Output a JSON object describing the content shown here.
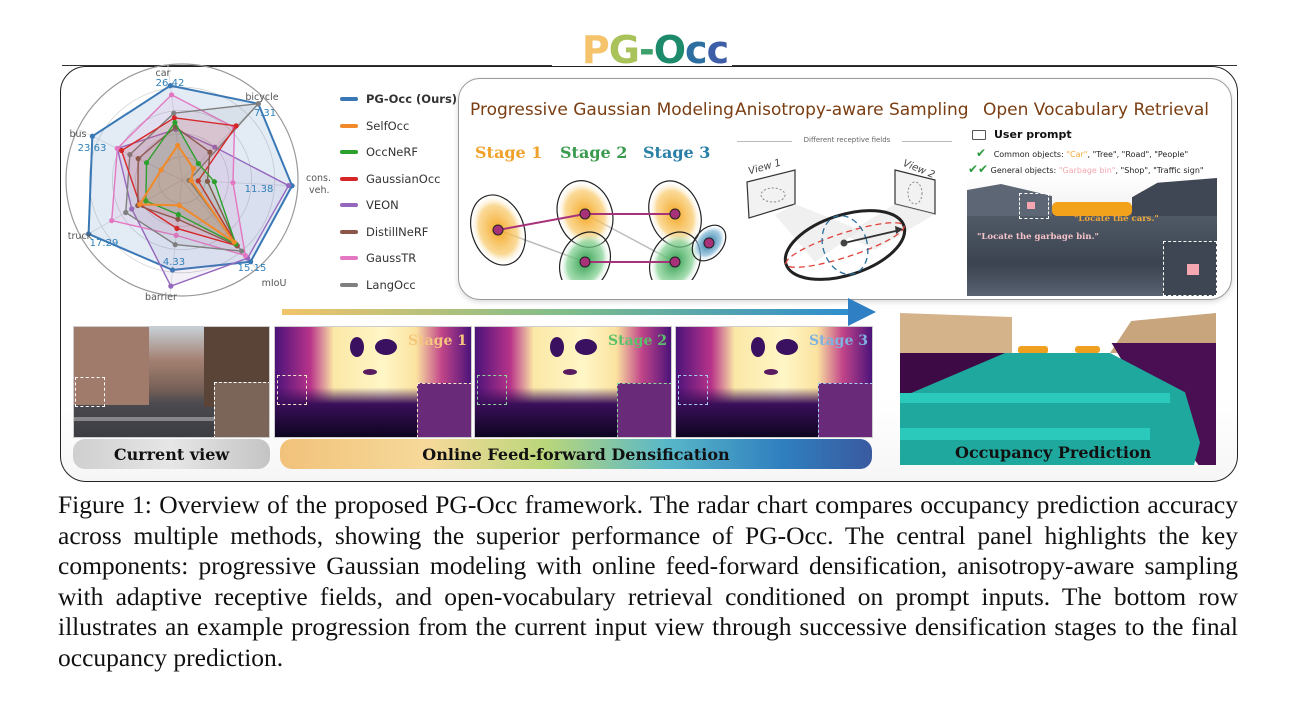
{
  "figure": {
    "title_letters": [
      "P",
      "G",
      "-",
      "O",
      "c",
      "c"
    ],
    "title": "PG-Occ",
    "sections": {
      "gaussian": {
        "title": "Progressive Gaussian Modeling",
        "stages": [
          {
            "label": "Stage 1",
            "color": "#f0a12c"
          },
          {
            "label": "Stage 2",
            "color": "#3a9a4e"
          },
          {
            "label": "Stage 3",
            "color": "#2a7fa6"
          }
        ]
      },
      "sampling": {
        "title": "Anisotropy-aware Sampling",
        "receptive_label": "Different receptive fields",
        "view1": "View 1",
        "view2": "View 2"
      },
      "retrieval": {
        "title": "Open Vocabulary Retrieval",
        "user_prompt": "User prompt",
        "common_label": "Common objects: ",
        "common_highlight": "\"Car\"",
        "common_rest": ", \"Tree\", \"Road\", \"People\"",
        "general_label": "General objects: ",
        "general_highlight": "\"Garbage bin\"",
        "general_rest": ", \"Shop\", \"Traffic sign\"",
        "query_cars": "\"Locate the cars.\"",
        "query_bin": "\"Locate the garbage bin.\""
      }
    },
    "bottom": {
      "current_view_label": "Current view",
      "densification_label": "Online Feed-forward Densification",
      "occupancy_label": "Occupancy Prediction",
      "depth_stages": [
        {
          "label": "Stage 1",
          "color": "#f5c77e"
        },
        {
          "label": "Stage 2",
          "color": "#5cc06a"
        },
        {
          "label": "Stage 3",
          "color": "#7fb2e0"
        }
      ]
    },
    "caption": "Figure 1: Overview of the proposed PG-Occ framework. The radar chart compares occupancy prediction accuracy across multiple methods, showing the superior performance of PG-Occ. The central panel highlights the key components: progressive Gaussian modeling with online feed-forward densification, anisotropy-aware sampling with adaptive receptive fields, and open-vocabulary retrieval conditioned on prompt inputs. The bottom row illustrates an example progression from the current input view through successive densification stages to the final occupancy prediction."
  },
  "chart_data": {
    "type": "radar",
    "title": "",
    "axes": [
      "car",
      "bicycle",
      "cons. veh.",
      "mIoU",
      "barrier",
      "truck",
      "bus"
    ],
    "axis_max_labels": [
      "26.42",
      "7.31",
      "11.38",
      "15.15",
      "4.33",
      "17.29",
      "23.63"
    ],
    "value_scale": "normalized to per-axis maximum (PG-Occ = best); values are estimated fractions of outer radius",
    "grid": true,
    "legend_position": "right",
    "series": [
      {
        "name": "PG-Occ (Ours)",
        "color": "#3a78b5",
        "bold": true,
        "values": [
          0.82,
          0.93,
          0.95,
          0.92,
          0.78,
          0.93,
          0.86
        ]
      },
      {
        "name": "SelfOcc",
        "color": "#f08a2a",
        "values": [
          0.3,
          0.14,
          0.08,
          0.7,
          0.22,
          0.42,
          0.2
        ]
      },
      {
        "name": "OccNeRF",
        "color": "#2ca02c",
        "values": [
          0.5,
          0.2,
          0.28,
          0.72,
          0.3,
          0.36,
          0.34
        ]
      },
      {
        "name": "GaussianOcc",
        "color": "#d62728",
        "values": [
          0.54,
          0.66,
          0.14,
          0.74,
          0.42,
          0.42,
          0.58
        ]
      },
      {
        "name": "VEON",
        "color": "#9467bd",
        "values": [
          0.44,
          0.4,
          0.92,
          0.88,
          0.92,
          0.5,
          0.62
        ]
      },
      {
        "name": "DistillNeRF",
        "color": "#8c564b",
        "values": [
          0.46,
          0.34,
          0.22,
          0.74,
          0.34,
          0.44,
          0.42
        ]
      },
      {
        "name": "GaussTR",
        "color": "#e377c2",
        "values": [
          0.74,
          0.64,
          0.44,
          0.85,
          0.48,
          0.7,
          0.62
        ]
      },
      {
        "name": "LangOcc",
        "color": "#7f7f7f",
        "values": [
          0.58,
          0.93,
          0.06,
          0.8,
          0.56,
          0.56,
          0.5
        ]
      }
    ]
  }
}
